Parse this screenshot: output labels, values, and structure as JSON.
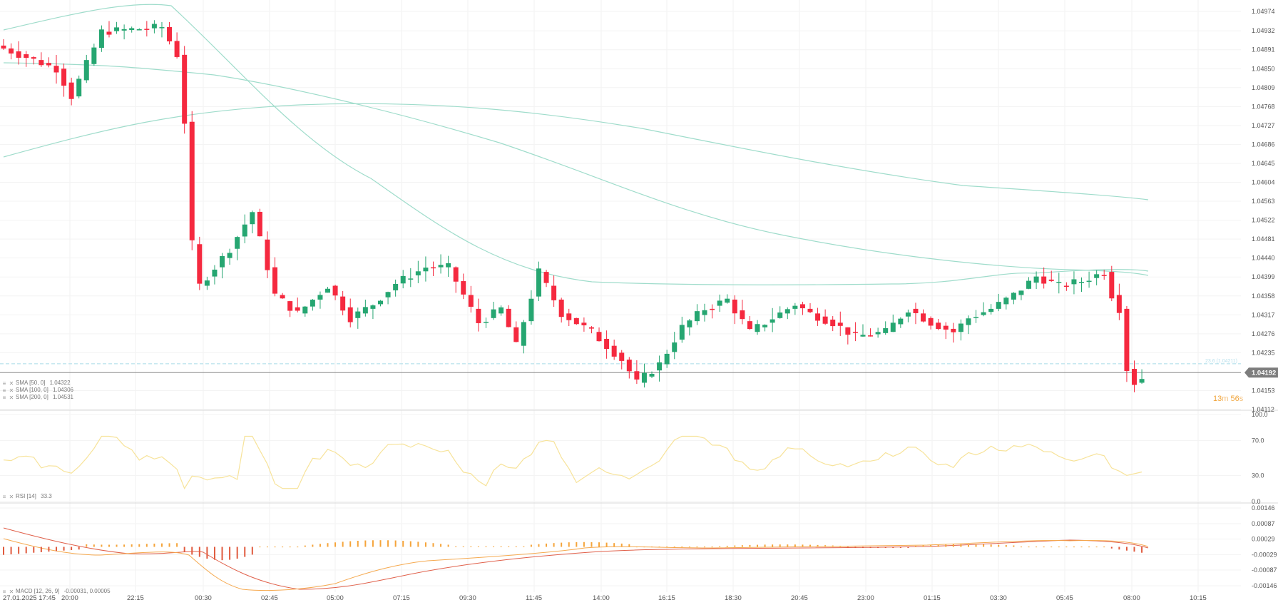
{
  "chart_data": {
    "type": "candlestick",
    "title": "",
    "instrument_last_price": "1.04192",
    "price_axis": {
      "ticks": [
        "1.04974",
        "1.04932",
        "1.04891",
        "1.04850",
        "1.04809",
        "1.04768",
        "1.04727",
        "1.04686",
        "1.04645",
        "1.04604",
        "1.04563",
        "1.04522",
        "1.04481",
        "1.04440",
        "1.04399",
        "1.04358",
        "1.04317",
        "1.04276",
        "1.04235",
        "1.04153",
        "1.04112"
      ],
      "range": [
        1.04112,
        1.04974
      ]
    },
    "time_axis": {
      "ticks": [
        "27.01.2025  17:45",
        "20:00",
        "22:15",
        "00:30",
        "02:45",
        "05:00",
        "07:15",
        "09:30",
        "11:45",
        "14:00",
        "16:15",
        "18:30",
        "20:45",
        "23:00",
        "01:15",
        "03:30",
        "05:45",
        "08:00",
        "10:15"
      ]
    },
    "current_price_label": "1.04192",
    "fib_label": "23.6 (1.04211)",
    "fib_level": 1.04211,
    "countdown": {
      "minutes": "13",
      "m": "m",
      "seconds": "56",
      "s": "s"
    },
    "indicators": {
      "sma": [
        {
          "label": "SMA [50, 0]",
          "value": "1.04322"
        },
        {
          "label": "SMA [100, 0]",
          "value": "1.04306"
        },
        {
          "label": "SMA [200, 0]",
          "value": "1.04531"
        }
      ],
      "rsi": {
        "label": "RSI [14]",
        "value": "33.3",
        "ticks": [
          "100.0",
          "70.0",
          "30.0",
          "0.0"
        ]
      },
      "macd": {
        "label": "MACD [12, 26, 9]",
        "value": "-0.00031,  0.00005",
        "ticks": [
          "0.00146",
          "0.00087",
          "0.00029",
          "-0.00029",
          "-0.00087",
          "-0.00146"
        ]
      }
    },
    "colors": {
      "up": "#26a671",
      "down": "#f5293f",
      "sma": "#9fdccb",
      "rsi": "#f7e39a",
      "macd_line": "#f5a94f",
      "signal_line": "#e0604a",
      "hist_up": "#f5a43a",
      "hist_down": "#e05a3e",
      "fib": "#a8dbe8",
      "price_line": "#8a8a8a"
    },
    "candles_ohlc_approx": [
      [
        1.04932,
        1.0495,
        1.0488,
        1.04895
      ],
      [
        1.04895,
        1.0491,
        1.0483,
        1.0484
      ],
      [
        1.04855,
        1.0493,
        1.0484,
        1.0488
      ],
      [
        1.0487,
        1.04885,
        1.04845,
        1.04865
      ],
      [
        1.04875,
        1.04935,
        1.0486,
        1.0489
      ],
      [
        1.0488,
        1.04925,
        1.0484,
        1.04905
      ],
      [
        1.0488,
        1.0488,
        1.0482,
        1.0482
      ],
      [
        1.0485,
        1.0487,
        1.0481,
        1.0486
      ],
      [
        1.0486,
        1.0488,
        1.0484,
        1.04845
      ],
      [
        1.0483,
        1.0483,
        1.0479,
        1.04795
      ],
      [
        1.04795,
        1.04905,
        1.0479,
        1.0488
      ],
      [
        1.0488,
        1.04925,
        1.0485,
        1.04915
      ],
      [
        1.0491,
        1.04935,
        1.04875,
        1.0492
      ],
      [
        1.049,
        1.0493,
        1.0489,
        1.0489
      ],
      [
        1.04915,
        1.0495,
        1.04885,
        1.0495
      ],
      [
        1.04945,
        1.0495,
        1.0486,
        1.04865
      ],
      [
        1.0488,
        1.0489,
        1.04855,
        1.049
      ],
      [
        1.0489,
        1.0491,
        1.04885,
        1.04905
      ],
      [
        1.04895,
        1.04915,
        1.0489,
        1.0491
      ],
      [
        1.0491,
        1.04935,
        1.049,
        1.0492
      ],
      [
        1.0492,
        1.04935,
        1.0488,
        1.0493
      ],
      [
        1.04935,
        1.04945,
        1.0493,
        1.0494
      ],
      [
        1.0494,
        1.04945,
        1.0492,
        1.04925
      ],
      [
        1.04925,
        1.04935,
        1.0488,
        1.0488
      ],
      [
        1.0488,
        1.0488,
        1.0473,
        1.04735
      ],
      [
        1.0473,
        1.0473,
        1.0447,
        1.0447
      ],
      [
        1.0447,
        1.04555,
        1.0435,
        1.0442
      ],
      [
        1.0442,
        1.0452,
        1.0433,
        1.04395
      ],
      [
        1.04395,
        1.0446,
        1.0437,
        1.0445
      ],
      [
        1.0445,
        1.0446,
        1.0438,
        1.04455
      ],
      [
        1.04455,
        1.04495,
        1.0444,
        1.04495
      ],
      [
        1.04495,
        1.0451,
        1.0442,
        1.04455
      ],
      [
        1.04455,
        1.04545,
        1.0441,
        1.0454
      ],
      [
        1.04545,
        1.04565,
        1.0453,
        1.0452
      ],
      [
        1.0452,
        1.0453,
        1.0446,
        1.0446
      ],
      [
        1.0446,
        1.0449,
        1.0436,
        1.04375
      ],
      [
        1.04375,
        1.04395,
        1.0431,
        1.0434
      ],
      [
        1.0434,
        1.044,
        1.0432,
        1.04395
      ]
    ]
  },
  "legend_icons": {
    "menu": "≡",
    "close": "✕"
  }
}
